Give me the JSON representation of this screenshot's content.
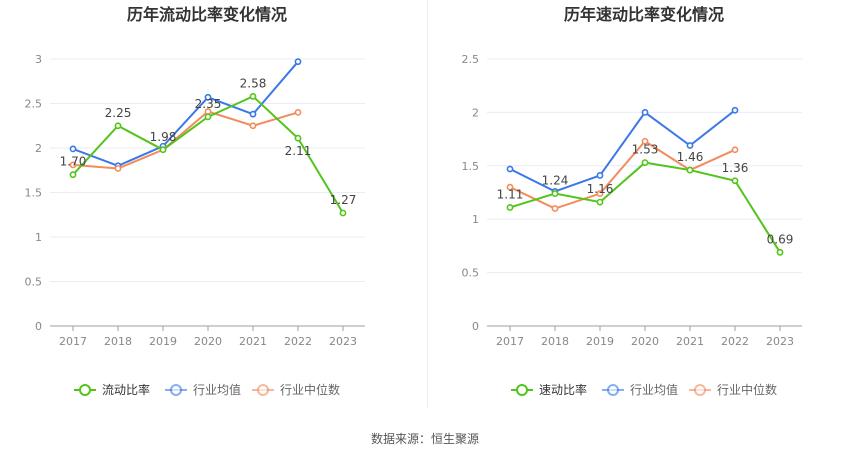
{
  "colors": {
    "primary_series": "#52c41a",
    "industry_avg": "#3a78e7",
    "industry_median": "#f28c5e",
    "grid": "#e8ecf5",
    "axis_text": "#888888",
    "title_text": "#333333"
  },
  "footer": {
    "source_label": "数据来源：",
    "source_name": "恒生聚源"
  },
  "chart_data": [
    {
      "type": "line",
      "title": "历年流动比率变化情况",
      "categories": [
        "2017",
        "2018",
        "2019",
        "2020",
        "2021",
        "2022",
        "2023"
      ],
      "y_ticks": [
        "0",
        "0.5",
        "1",
        "1.5",
        "2",
        "2.5",
        "3"
      ],
      "ylim": [
        0,
        3
      ],
      "grid": true,
      "legend_position": "bottom",
      "series": [
        {
          "name": "流动比率",
          "values": [
            1.7,
            2.25,
            1.98,
            2.35,
            2.58,
            2.11,
            1.27
          ],
          "labels": [
            "1.70",
            "2.25",
            "1.98",
            "2.35",
            "2.58",
            "2.11",
            "1.27"
          ]
        },
        {
          "name": "行业均值",
          "values": [
            1.99,
            1.8,
            2.02,
            2.57,
            2.38,
            2.97,
            null
          ]
        },
        {
          "name": "行业中位数",
          "values": [
            1.81,
            1.77,
            1.98,
            2.41,
            2.25,
            2.4,
            null
          ]
        }
      ]
    },
    {
      "type": "line",
      "title": "历年速动比率变化情况",
      "categories": [
        "2017",
        "2018",
        "2019",
        "2020",
        "2021",
        "2022",
        "2023"
      ],
      "y_ticks": [
        "0",
        "0.5",
        "1",
        "1.5",
        "2",
        "2.5"
      ],
      "ylim": [
        0,
        2.5
      ],
      "grid": true,
      "legend_position": "bottom",
      "series": [
        {
          "name": "速动比率",
          "values": [
            1.11,
            1.24,
            1.16,
            1.53,
            1.46,
            1.36,
            0.69
          ],
          "labels": [
            "1.11",
            "1.24",
            "1.16",
            "1.53",
            "1.46",
            "1.36",
            "0.69"
          ]
        },
        {
          "name": "行业均值",
          "values": [
            1.47,
            1.26,
            1.41,
            2.0,
            1.69,
            2.02,
            null
          ]
        },
        {
          "name": "行业中位数",
          "values": [
            1.3,
            1.1,
            1.24,
            1.73,
            1.46,
            1.65,
            null
          ]
        }
      ]
    }
  ]
}
